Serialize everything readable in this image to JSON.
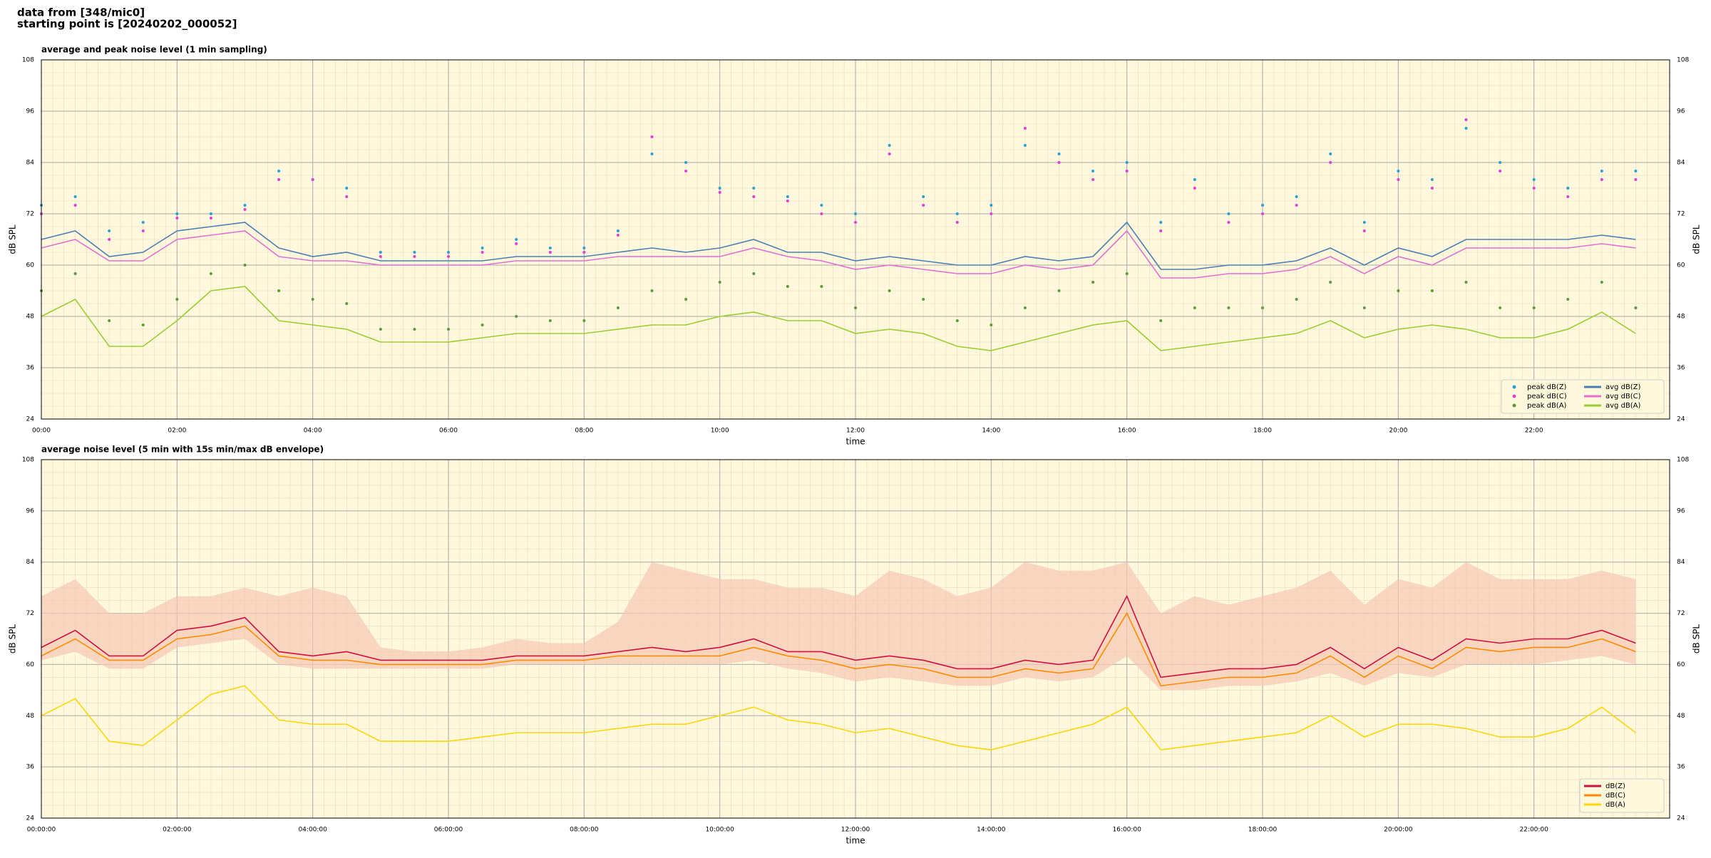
{
  "header": {
    "lines": [
      "data from [348/mic0]",
      "starting point is [20240202_000052]"
    ]
  },
  "chart_data": [
    {
      "type": "line",
      "title": "average and peak noise level (1 min sampling)",
      "x_label": "time",
      "y_label": "dB SPL",
      "x": [
        0,
        0.5,
        1,
        1.5,
        2,
        2.5,
        3,
        3.5,
        4,
        4.5,
        5,
        5.5,
        6,
        6.5,
        7,
        7.5,
        8,
        8.5,
        9,
        9.5,
        10,
        10.5,
        11,
        11.5,
        12,
        12.5,
        13,
        13.5,
        14,
        14.5,
        15,
        15.5,
        16,
        16.5,
        17,
        17.5,
        18,
        18.5,
        19,
        19.5,
        20,
        20.5,
        21,
        21.5,
        22,
        22.5,
        23,
        23.5
      ],
      "xlim": [
        0,
        24
      ],
      "xticks": [
        {
          "value": 0,
          "label": "00:00"
        },
        {
          "value": 2,
          "label": "02:00"
        },
        {
          "value": 4,
          "label": "04:00"
        },
        {
          "value": 6,
          "label": "06:00"
        },
        {
          "value": 8,
          "label": "08:00"
        },
        {
          "value": 10,
          "label": "10:00"
        },
        {
          "value": 12,
          "label": "12:00"
        },
        {
          "value": 14,
          "label": "14:00"
        },
        {
          "value": 16,
          "label": "16:00"
        },
        {
          "value": 18,
          "label": "18:00"
        },
        {
          "value": 20,
          "label": "20:00"
        },
        {
          "value": 22,
          "label": "22:00"
        }
      ],
      "ylim": [
        24,
        108
      ],
      "yticks": [
        24,
        36,
        48,
        60,
        72,
        84,
        96,
        108
      ],
      "grid": true,
      "legend": "lower right",
      "series": [
        {
          "name": "peak dB(Z)",
          "style": "markers",
          "color": "#2a9fd6",
          "values": [
            74,
            76,
            68,
            70,
            72,
            72,
            74,
            82,
            80,
            78,
            63,
            63,
            63,
            64,
            66,
            64,
            64,
            68,
            86,
            84,
            78,
            78,
            76,
            74,
            72,
            88,
            76,
            72,
            74,
            88,
            86,
            82,
            84,
            70,
            80,
            72,
            74,
            76,
            86,
            70,
            82,
            80,
            92,
            84,
            80,
            78,
            82,
            82
          ]
        },
        {
          "name": "peak dB(C)",
          "style": "markers",
          "color": "#e23fd8",
          "values": [
            72,
            74,
            66,
            68,
            71,
            71,
            73,
            80,
            80,
            76,
            62,
            62,
            62,
            63,
            65,
            63,
            63,
            67,
            90,
            82,
            77,
            76,
            75,
            72,
            70,
            86,
            74,
            70,
            72,
            92,
            84,
            80,
            82,
            68,
            78,
            70,
            72,
            74,
            84,
            68,
            80,
            78,
            94,
            82,
            78,
            76,
            80,
            80
          ]
        },
        {
          "name": "peak dB(A)",
          "style": "markers",
          "color": "#5a9a3a",
          "values": [
            54,
            58,
            47,
            46,
            52,
            58,
            60,
            54,
            52,
            51,
            45,
            45,
            45,
            46,
            48,
            47,
            47,
            50,
            54,
            52,
            56,
            58,
            55,
            55,
            50,
            54,
            52,
            47,
            46,
            50,
            54,
            56,
            58,
            47,
            50,
            50,
            50,
            52,
            56,
            50,
            54,
            54,
            56,
            50,
            50,
            52,
            56,
            50
          ]
        },
        {
          "name": "avg dB(Z)",
          "style": "line",
          "color": "#4a7fb5",
          "values": [
            66,
            68,
            62,
            63,
            68,
            69,
            70,
            64,
            62,
            63,
            61,
            61,
            61,
            61,
            62,
            62,
            62,
            63,
            64,
            63,
            64,
            66,
            63,
            63,
            61,
            62,
            61,
            60,
            60,
            62,
            61,
            62,
            70,
            59,
            59,
            60,
            60,
            61,
            64,
            60,
            64,
            62,
            66,
            66,
            66,
            66,
            67,
            66
          ]
        },
        {
          "name": "avg dB(C)",
          "style": "line",
          "color": "#e070d4",
          "values": [
            64,
            66,
            61,
            61,
            66,
            67,
            68,
            62,
            61,
            61,
            60,
            60,
            60,
            60,
            61,
            61,
            61,
            62,
            62,
            62,
            62,
            64,
            62,
            61,
            59,
            60,
            59,
            58,
            58,
            60,
            59,
            60,
            68,
            57,
            57,
            58,
            58,
            59,
            62,
            58,
            62,
            60,
            64,
            64,
            64,
            64,
            65,
            64
          ]
        },
        {
          "name": "avg dB(A)",
          "style": "line",
          "color": "#9acd32",
          "values": [
            48,
            52,
            41,
            41,
            47,
            54,
            55,
            47,
            46,
            45,
            42,
            42,
            42,
            43,
            44,
            44,
            44,
            45,
            46,
            46,
            48,
            49,
            47,
            47,
            44,
            45,
            44,
            41,
            40,
            42,
            44,
            46,
            47,
            40,
            41,
            42,
            43,
            44,
            47,
            43,
            45,
            46,
            45,
            43,
            43,
            45,
            49,
            44
          ]
        }
      ]
    },
    {
      "type": "line",
      "title": "average noise level (5 min with 15s min/max dB envelope)",
      "x_label": "time",
      "y_label": "dB SPL",
      "x": [
        0,
        0.5,
        1,
        1.5,
        2,
        2.5,
        3,
        3.5,
        4,
        4.5,
        5,
        5.5,
        6,
        6.5,
        7,
        7.5,
        8,
        8.5,
        9,
        9.5,
        10,
        10.5,
        11,
        11.5,
        12,
        12.5,
        13,
        13.5,
        14,
        14.5,
        15,
        15.5,
        16,
        16.5,
        17,
        17.5,
        18,
        18.5,
        19,
        19.5,
        20,
        20.5,
        21,
        21.5,
        22,
        22.5,
        23,
        23.5
      ],
      "xlim": [
        0,
        24
      ],
      "xticks": [
        {
          "value": 0,
          "label": "00:00:00"
        },
        {
          "value": 2,
          "label": "02:00:00"
        },
        {
          "value": 4,
          "label": "04:00:00"
        },
        {
          "value": 6,
          "label": "06:00:00"
        },
        {
          "value": 8,
          "label": "08:00:00"
        },
        {
          "value": 10,
          "label": "10:00:00"
        },
        {
          "value": 12,
          "label": "12:00:00"
        },
        {
          "value": 14,
          "label": "14:00:00"
        },
        {
          "value": 16,
          "label": "16:00:00"
        },
        {
          "value": 18,
          "label": "18:00:00"
        },
        {
          "value": 20,
          "label": "20:00:00"
        },
        {
          "value": 22,
          "label": "22:00:00"
        }
      ],
      "ylim": [
        24,
        108
      ],
      "yticks": [
        24,
        36,
        48,
        60,
        72,
        84,
        96,
        108
      ],
      "grid": true,
      "legend": "lower right",
      "envelope": {
        "color": "#f5c8b4",
        "min": [
          61,
          63,
          59,
          59,
          64,
          65,
          66,
          60,
          59,
          59,
          59,
          59,
          59,
          59,
          60,
          60,
          60,
          60,
          60,
          60,
          60,
          61,
          59,
          58,
          56,
          57,
          56,
          55,
          55,
          57,
          56,
          57,
          62,
          54,
          54,
          55,
          55,
          56,
          58,
          55,
          58,
          57,
          60,
          60,
          60,
          61,
          62,
          60
        ],
        "max": [
          76,
          80,
          72,
          72,
          76,
          76,
          78,
          76,
          78,
          76,
          64,
          63,
          63,
          64,
          66,
          65,
          65,
          70,
          84,
          82,
          80,
          80,
          78,
          78,
          76,
          82,
          80,
          76,
          78,
          84,
          82,
          82,
          84,
          72,
          76,
          74,
          76,
          78,
          82,
          74,
          80,
          78,
          84,
          80,
          80,
          80,
          82,
          80
        ]
      },
      "series": [
        {
          "name": "dB(Z)",
          "style": "line",
          "color": "#d0103f",
          "values": [
            64,
            68,
            62,
            62,
            68,
            69,
            71,
            63,
            62,
            63,
            61,
            61,
            61,
            61,
            62,
            62,
            62,
            63,
            64,
            63,
            64,
            66,
            63,
            63,
            61,
            62,
            61,
            59,
            59,
            61,
            60,
            61,
            76,
            57,
            58,
            59,
            59,
            60,
            64,
            59,
            64,
            61,
            66,
            65,
            66,
            66,
            68,
            65
          ]
        },
        {
          "name": "dB(C)",
          "style": "line",
          "color": "#ff8c00",
          "values": [
            62,
            66,
            61,
            61,
            66,
            67,
            69,
            62,
            61,
            61,
            60,
            60,
            60,
            60,
            61,
            61,
            61,
            62,
            62,
            62,
            62,
            64,
            62,
            61,
            59,
            60,
            59,
            57,
            57,
            59,
            58,
            59,
            72,
            55,
            56,
            57,
            57,
            58,
            62,
            57,
            62,
            59,
            64,
            63,
            64,
            64,
            66,
            63
          ]
        },
        {
          "name": "dB(A)",
          "style": "line",
          "color": "#ffd700",
          "values": [
            48,
            52,
            42,
            41,
            47,
            53,
            55,
            47,
            46,
            46,
            42,
            42,
            42,
            43,
            44,
            44,
            44,
            45,
            46,
            46,
            48,
            50,
            47,
            46,
            44,
            45,
            43,
            41,
            40,
            42,
            44,
            46,
            50,
            40,
            41,
            42,
            43,
            44,
            48,
            43,
            46,
            46,
            45,
            43,
            43,
            45,
            50,
            44
          ]
        }
      ]
    }
  ]
}
